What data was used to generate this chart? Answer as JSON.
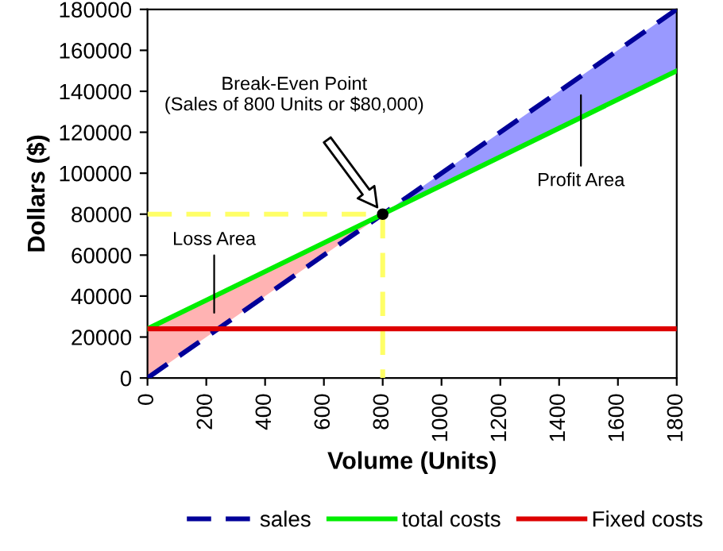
{
  "chart_data": {
    "type": "line",
    "xlabel": "Volume (Units)",
    "ylabel": "Dollars ($)",
    "xlim": [
      0,
      1800
    ],
    "ylim": [
      0,
      180000
    ],
    "xticks": [
      0,
      200,
      400,
      600,
      800,
      1000,
      1200,
      1400,
      1600,
      1800
    ],
    "yticks": [
      0,
      20000,
      40000,
      60000,
      80000,
      100000,
      120000,
      140000,
      160000,
      180000
    ],
    "grid": false,
    "legend": "bottom",
    "marker": "none",
    "series": [
      {
        "color": "#ffff66",
        "line_style": "dashed",
        "x": [
          0,
          800
        ],
        "values": [
          80000,
          80000
        ]
      },
      {
        "color": "#ffff66",
        "line_style": "dashed",
        "x": [
          800,
          800
        ],
        "values": [
          80000,
          0
        ]
      },
      {
        "name": "sales",
        "color": "#000099",
        "line_style": "dashed",
        "x": [
          0,
          1800
        ],
        "values": [
          0,
          180000
        ]
      },
      {
        "name": "total costs",
        "color": "#00ee00",
        "line_style": "solid",
        "x": [
          0,
          800
        ],
        "values": [
          24000,
          80000
        ],
        "lower": [
          0,
          80000
        ],
        "upper": [
          24000,
          80000
        ],
        "colors": [
          "#ffb3b3",
          "#ffb3b3"
        ]
      },
      {
        "color": "#00ee00",
        "line_style": "solid",
        "x": [
          800,
          1800
        ],
        "values": [
          80000,
          150000
        ],
        "lower": [
          80000,
          150000
        ],
        "upper": [
          80000,
          180000
        ],
        "colors": [
          "#9999ff",
          "#9999ff"
        ]
      },
      {
        "name": "Fixed costs",
        "color": "#dd0000",
        "line_style": "solid",
        "x": [
          0,
          1800
        ],
        "values": [
          24000,
          24000
        ]
      },
      {
        "type": "scatter",
        "color": "#000000",
        "marker": "circle",
        "x": [
          800
        ],
        "values": [
          80000
        ]
      }
    ],
    "annotations": [
      "Break-Even Point\n(Sales of 800 Units or $80,000)",
      "Loss Area",
      "Profit Area"
    ]
  }
}
